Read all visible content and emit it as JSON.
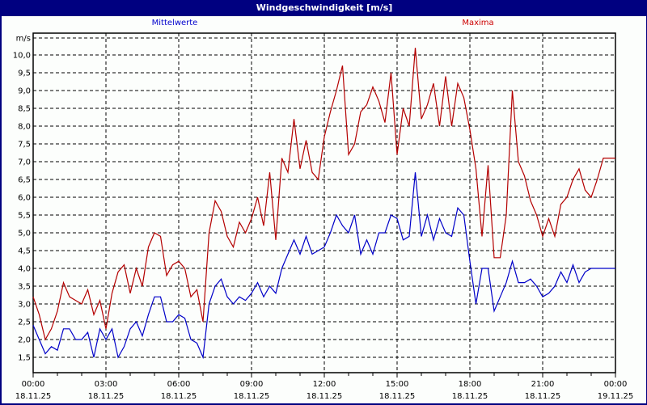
{
  "window": {
    "title": "Windgeschwindigkeit [m/s]",
    "colors": {
      "titlebar": "#000080",
      "background": "#fcfefc",
      "mean": "#0000c8",
      "max": "#b40000",
      "grid": "#000000"
    }
  },
  "legend": {
    "mean_label": "Mittelwerte",
    "max_label": "Maxima"
  },
  "chart_data": {
    "type": "line",
    "title": "Windgeschwindigkeit [m/s]",
    "xlabel": "",
    "ylabel": "m/s",
    "ylim": [
      1.0,
      10.5
    ],
    "grid": true,
    "legend_position": "top",
    "y_ticks": [
      "1,5",
      "2,0",
      "2,5",
      "3,0",
      "3,5",
      "4,0",
      "4,5",
      "5,0",
      "5,5",
      "6,0",
      "6,5",
      "7,0",
      "7,5",
      "8,0",
      "8,5",
      "9,0",
      "9,5",
      "10,0",
      "m/s"
    ],
    "x_ticks": [
      {
        "time": "00:00",
        "date": "18.11.25"
      },
      {
        "time": "03:00",
        "date": "18.11.25"
      },
      {
        "time": "06:00",
        "date": "18.11.25"
      },
      {
        "time": "09:00",
        "date": "18.11.25"
      },
      {
        "time": "12:00",
        "date": "18.11.25"
      },
      {
        "time": "15:00",
        "date": "18.11.25"
      },
      {
        "time": "18:00",
        "date": "18.11.25"
      },
      {
        "time": "21:00",
        "date": "18.11.25"
      },
      {
        "time": "00:00",
        "date": "19.11.25"
      }
    ],
    "x_hours": [
      0,
      0.25,
      0.5,
      0.75,
      1,
      1.25,
      1.5,
      1.75,
      2,
      2.25,
      2.5,
      2.75,
      3,
      3.25,
      3.5,
      3.75,
      4,
      4.25,
      4.5,
      4.75,
      5,
      5.25,
      5.5,
      5.75,
      6,
      6.25,
      6.5,
      6.75,
      7,
      7.25,
      7.5,
      7.75,
      8,
      8.25,
      8.5,
      8.75,
      9,
      9.25,
      9.5,
      9.75,
      10,
      10.25,
      10.5,
      10.75,
      11,
      11.25,
      11.5,
      11.75,
      12,
      12.25,
      12.5,
      12.75,
      13,
      13.25,
      13.5,
      13.75,
      14,
      14.25,
      14.5,
      14.75,
      15,
      15.25,
      15.5,
      15.75,
      16,
      16.25,
      16.5,
      16.75,
      17,
      17.25,
      17.5,
      17.75,
      18,
      18.25,
      18.5,
      18.75,
      19,
      19.25,
      19.5,
      19.75,
      20,
      20.25,
      20.5,
      20.75,
      21,
      21.25,
      21.5,
      21.75,
      22,
      22.25,
      22.5,
      22.75,
      23,
      23.25,
      23.5,
      23.75,
      24
    ],
    "series": [
      {
        "name": "Mittelwerte",
        "color": "#0000c8",
        "values": [
          2.4,
          2.0,
          1.6,
          1.8,
          1.7,
          2.3,
          2.3,
          2.0,
          2.0,
          2.2,
          1.5,
          2.3,
          2.0,
          2.3,
          1.5,
          1.8,
          2.3,
          2.5,
          2.1,
          2.7,
          3.2,
          3.2,
          2.5,
          2.5,
          2.7,
          2.6,
          2.0,
          1.9,
          1.5,
          3.0,
          3.5,
          3.7,
          3.2,
          3.0,
          3.2,
          3.1,
          3.3,
          3.6,
          3.2,
          3.5,
          3.3,
          4.0,
          4.4,
          4.8,
          4.4,
          4.9,
          4.4,
          4.5,
          4.6,
          5.0,
          5.5,
          5.2,
          5.0,
          5.5,
          4.4,
          4.8,
          4.4,
          5.0,
          5.0,
          5.5,
          5.4,
          4.8,
          4.9,
          6.7,
          4.9,
          5.5,
          4.8,
          5.4,
          5.0,
          4.9,
          5.7,
          5.5,
          4.2,
          3.0,
          4.0,
          4.0,
          2.8,
          3.2,
          3.6,
          4.2,
          3.6,
          3.6,
          3.7,
          3.5,
          3.2,
          3.3,
          3.5,
          3.9,
          3.6,
          4.1,
          3.6,
          3.9,
          4.0,
          4.0,
          4.0,
          4.0,
          4.0
        ]
      },
      {
        "name": "Maxima",
        "color": "#b40000",
        "values": [
          3.2,
          2.7,
          2.0,
          2.3,
          2.8,
          3.6,
          3.2,
          3.1,
          3.0,
          3.4,
          2.7,
          3.1,
          2.3,
          3.3,
          3.9,
          4.1,
          3.3,
          4.0,
          3.5,
          4.6,
          5.0,
          4.9,
          3.8,
          4.1,
          4.2,
          4.0,
          3.2,
          3.4,
          2.5,
          5.0,
          5.9,
          5.6,
          4.9,
          4.6,
          5.3,
          5.0,
          5.4,
          6.0,
          5.2,
          6.7,
          4.8,
          7.1,
          6.7,
          8.2,
          6.8,
          7.6,
          6.7,
          6.5,
          7.7,
          8.4,
          9.0,
          9.7,
          7.2,
          7.5,
          8.4,
          8.6,
          9.1,
          8.7,
          8.1,
          9.5,
          7.2,
          8.5,
          8.0,
          10.2,
          8.2,
          8.6,
          9.2,
          8.0,
          9.4,
          8.0,
          9.2,
          8.8,
          7.9,
          6.8,
          4.9,
          6.9,
          4.3,
          4.3,
          5.5,
          9.0,
          7.0,
          6.6,
          5.9,
          5.5,
          4.9,
          5.4,
          4.9,
          5.8,
          6.0,
          6.5,
          6.8,
          6.2,
          6.0,
          6.5,
          7.1,
          7.1,
          7.1
        ]
      }
    ]
  }
}
